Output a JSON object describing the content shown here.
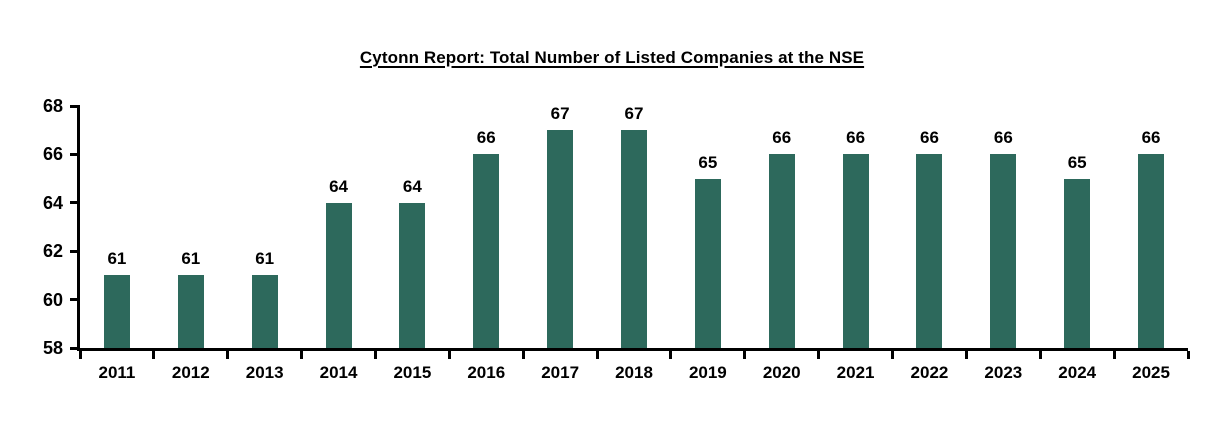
{
  "chart_data": {
    "type": "bar",
    "title": "Cytonn Report: Total Number of Listed Companies at the NSE",
    "categories": [
      "2011",
      "2012",
      "2013",
      "2014",
      "2015",
      "2016",
      "2017",
      "2018",
      "2019",
      "2020",
      "2021",
      "2022",
      "2023",
      "2024",
      "2025"
    ],
    "values": [
      61,
      61,
      61,
      64,
      64,
      66,
      67,
      67,
      65,
      66,
      66,
      66,
      66,
      65,
      66
    ],
    "xlabel": "",
    "ylabel": "",
    "ylim": [
      58,
      68
    ],
    "yticks": [
      58,
      60,
      62,
      64,
      66,
      68
    ],
    "bar_color": "#2D695C",
    "axis_color": "#000000",
    "text_color": "#000000",
    "grid": false,
    "legend_position": "none",
    "data_labels": true
  }
}
